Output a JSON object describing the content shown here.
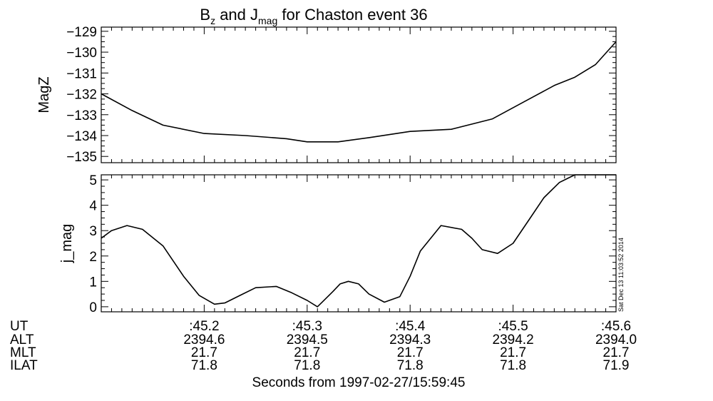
{
  "title": {
    "main": "B",
    "sub1": "z",
    "mid": " and J",
    "sub2": "mag",
    "rest": " for Chaston event 36"
  },
  "timestamp": "Sat Dec 13 11:03:52 2014",
  "xlabel": "Seconds from 1997-02-27/15:59:45",
  "info_rows": [
    {
      "label": "UT",
      "values": [
        ":45.2",
        ":45.3",
        ":45.4",
        ":45.5",
        ":45.6"
      ]
    },
    {
      "label": "ALT",
      "values": [
        "2394.6",
        "2394.5",
        "2394.3",
        "2394.2",
        "2394.0"
      ]
    },
    {
      "label": "MLT",
      "values": [
        "21.7",
        "21.7",
        "21.7",
        "21.7",
        "21.7"
      ]
    },
    {
      "label": "ILAT",
      "values": [
        "71.8",
        "71.8",
        "71.8",
        "71.8",
        "71.9"
      ]
    }
  ],
  "chart_data": [
    {
      "type": "line",
      "ylabel": "MagZ",
      "ylim": [
        -135.3,
        -128.8
      ],
      "yticks": [
        -129,
        -130,
        -131,
        -132,
        -133,
        -134,
        -135
      ],
      "xlim": [
        0.1,
        0.6
      ],
      "xticks": [
        0.2,
        0.3,
        0.4,
        0.5,
        0.6
      ],
      "series": [
        {
          "x": [
            0.1,
            0.13,
            0.16,
            0.2,
            0.24,
            0.28,
            0.3,
            0.33,
            0.36,
            0.4,
            0.44,
            0.48,
            0.51,
            0.54,
            0.56,
            0.58,
            0.6
          ],
          "y": [
            -132.0,
            -132.8,
            -133.5,
            -133.9,
            -134.0,
            -134.15,
            -134.3,
            -134.3,
            -134.1,
            -133.8,
            -133.7,
            -133.2,
            -132.4,
            -131.6,
            -131.2,
            -130.6,
            -129.5
          ]
        }
      ]
    },
    {
      "type": "line",
      "ylabel": "j_mag",
      "ylim": [
        -0.2,
        5.2
      ],
      "yticks": [
        0,
        1,
        2,
        3,
        4,
        5
      ],
      "xlim": [
        0.1,
        0.6
      ],
      "xticks": [
        0.2,
        0.3,
        0.4,
        0.5,
        0.6
      ],
      "series": [
        {
          "x": [
            0.1,
            0.11,
            0.125,
            0.14,
            0.16,
            0.18,
            0.195,
            0.21,
            0.22,
            0.235,
            0.25,
            0.27,
            0.285,
            0.3,
            0.31,
            0.315,
            0.325,
            0.332,
            0.34,
            0.35,
            0.36,
            0.375,
            0.39,
            0.4,
            0.41,
            0.43,
            0.45,
            0.46,
            0.47,
            0.485,
            0.5,
            0.515,
            0.53,
            0.545,
            0.56,
            0.57,
            0.58,
            0.6
          ],
          "y": [
            2.7,
            3.0,
            3.2,
            3.05,
            2.4,
            1.2,
            0.45,
            0.1,
            0.15,
            0.45,
            0.75,
            0.8,
            0.55,
            0.25,
            0.0,
            0.2,
            0.6,
            0.9,
            1.0,
            0.9,
            0.5,
            0.18,
            0.4,
            1.2,
            2.2,
            3.2,
            3.05,
            2.7,
            2.25,
            2.1,
            2.5,
            3.4,
            4.3,
            4.9,
            5.2,
            5.2,
            5.2,
            5.2
          ]
        }
      ]
    }
  ]
}
